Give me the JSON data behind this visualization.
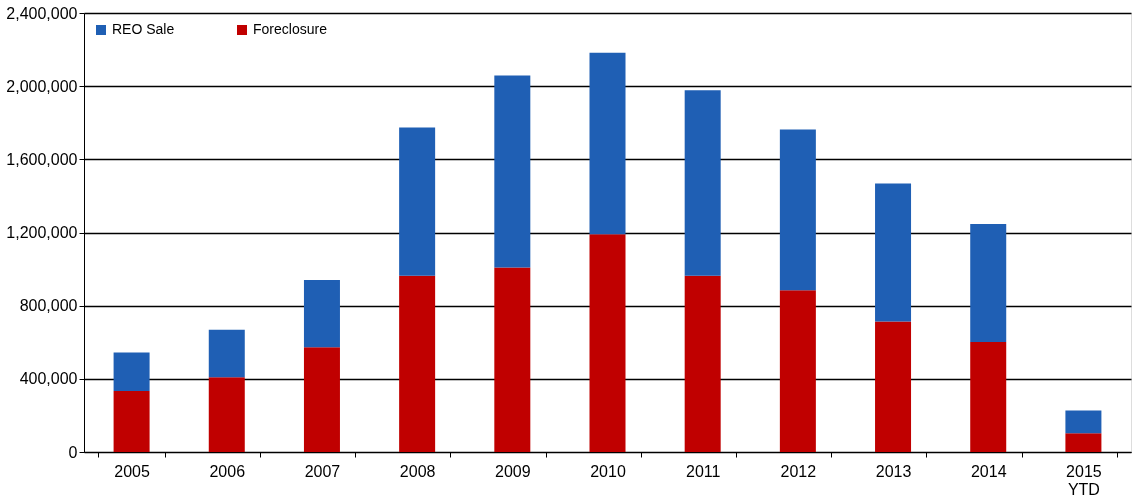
{
  "chart_data": {
    "type": "bar",
    "stacked": true,
    "categories": [
      "2005",
      "2006",
      "2007",
      "2008",
      "2009",
      "2010",
      "2011",
      "2012",
      "2013",
      "2014",
      "2015 YTD"
    ],
    "series": [
      {
        "name": "Foreclosure",
        "color": "#c00000",
        "values": [
          334000,
          408000,
          573000,
          964000,
          1009000,
          1190000,
          964000,
          884000,
          714000,
          601000,
          102000
        ]
      },
      {
        "name": "REO Sale",
        "color": "#1f5fb4",
        "values": [
          210000,
          261000,
          368000,
          810000,
          1049000,
          993000,
          1014000,
          879000,
          754000,
          646000,
          125000
        ]
      }
    ],
    "ylim": [
      0,
      2400000
    ],
    "yticks": [
      0,
      {
        "value": 400000,
        "label": "400,000"
      },
      {
        "value": 800000,
        "label": "800,000"
      },
      {
        "value": 1200000,
        "label": "1,200,000"
      },
      {
        "value": 1600000,
        "label": "1,600,000"
      },
      {
        "value": 2000000,
        "label": "2,000,000"
      },
      {
        "value": 2400000,
        "label": "2,400,000"
      }
    ],
    "grid": "y",
    "legend": "top left"
  }
}
